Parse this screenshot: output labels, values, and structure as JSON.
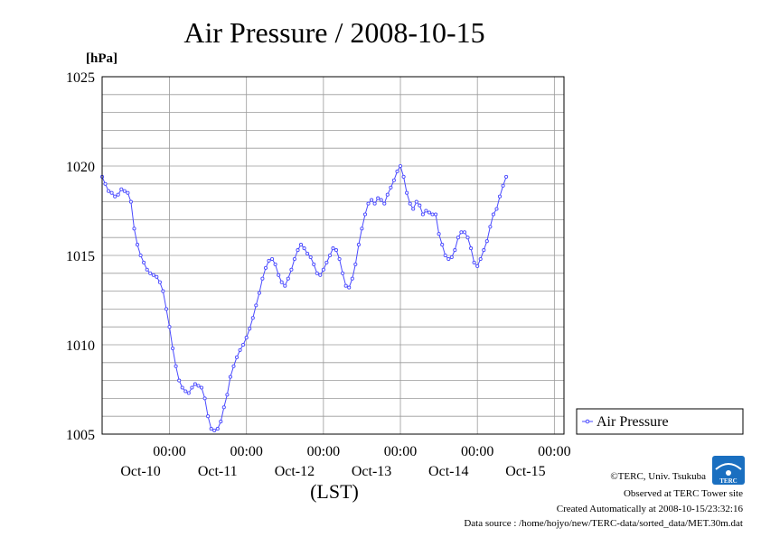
{
  "chart_data": {
    "type": "line",
    "title": "Air Pressure / 2008-10-15",
    "ylabel": "[hPa]",
    "xlabel": "(LST)",
    "ylim": [
      1005,
      1025
    ],
    "yticks": [
      1005,
      1010,
      1015,
      1020,
      1025
    ],
    "grid": true,
    "legend": "right",
    "xlim_hours": [
      0,
      144
    ],
    "xticks": [
      {
        "hour": 21,
        "time": "00:00",
        "date": "Oct-10"
      },
      {
        "hour": 45,
        "time": "00:00",
        "date": "Oct-11"
      },
      {
        "hour": 69,
        "time": "00:00",
        "date": "Oct-12"
      },
      {
        "hour": 93,
        "time": "00:00",
        "date": "Oct-13"
      },
      {
        "hour": 117,
        "time": "00:00",
        "date": "Oct-14"
      },
      {
        "hour": 141,
        "time": "00:00",
        "date": "Oct-15"
      }
    ],
    "series": [
      {
        "name": "Air Pressure",
        "color": "#4a4aff",
        "points": [
          [
            0,
            1019.4
          ],
          [
            1,
            1019.0
          ],
          [
            2,
            1018.6
          ],
          [
            3,
            1018.5
          ],
          [
            4,
            1018.3
          ],
          [
            5,
            1018.4
          ],
          [
            6,
            1018.7
          ],
          [
            7,
            1018.6
          ],
          [
            8,
            1018.5
          ],
          [
            9,
            1018.0
          ],
          [
            10,
            1016.5
          ],
          [
            11,
            1015.6
          ],
          [
            12,
            1015.0
          ],
          [
            13,
            1014.6
          ],
          [
            14,
            1014.2
          ],
          [
            15,
            1014.0
          ],
          [
            16,
            1013.9
          ],
          [
            17,
            1013.8
          ],
          [
            18,
            1013.5
          ],
          [
            19,
            1013.0
          ],
          [
            20,
            1012.0
          ],
          [
            21,
            1011.0
          ],
          [
            22,
            1009.8
          ],
          [
            23,
            1008.8
          ],
          [
            24,
            1008.0
          ],
          [
            25,
            1007.6
          ],
          [
            26,
            1007.4
          ],
          [
            27,
            1007.3
          ],
          [
            28,
            1007.6
          ],
          [
            29,
            1007.8
          ],
          [
            30,
            1007.7
          ],
          [
            31,
            1007.6
          ],
          [
            32,
            1007.0
          ],
          [
            33,
            1006.0
          ],
          [
            34,
            1005.3
          ],
          [
            35,
            1005.2
          ],
          [
            36,
            1005.3
          ],
          [
            37,
            1005.7
          ],
          [
            38,
            1006.5
          ],
          [
            39,
            1007.2
          ],
          [
            40,
            1008.2
          ],
          [
            41,
            1008.8
          ],
          [
            42,
            1009.3
          ],
          [
            43,
            1009.7
          ],
          [
            44,
            1010.0
          ],
          [
            45,
            1010.4
          ],
          [
            46,
            1010.9
          ],
          [
            47,
            1011.5
          ],
          [
            48,
            1012.2
          ],
          [
            49,
            1012.9
          ],
          [
            50,
            1013.7
          ],
          [
            51,
            1014.3
          ],
          [
            52,
            1014.7
          ],
          [
            53,
            1014.8
          ],
          [
            54,
            1014.5
          ],
          [
            55,
            1013.9
          ],
          [
            56,
            1013.5
          ],
          [
            57,
            1013.3
          ],
          [
            58,
            1013.7
          ],
          [
            59,
            1014.2
          ],
          [
            60,
            1014.8
          ],
          [
            61,
            1015.3
          ],
          [
            62,
            1015.6
          ],
          [
            63,
            1015.4
          ],
          [
            64,
            1015.1
          ],
          [
            65,
            1014.9
          ],
          [
            66,
            1014.5
          ],
          [
            67,
            1014.0
          ],
          [
            68,
            1013.9
          ],
          [
            69,
            1014.2
          ],
          [
            70,
            1014.6
          ],
          [
            71,
            1015.0
          ],
          [
            72,
            1015.4
          ],
          [
            73,
            1015.3
          ],
          [
            74,
            1014.8
          ],
          [
            75,
            1014.0
          ],
          [
            76,
            1013.3
          ],
          [
            77,
            1013.2
          ],
          [
            78,
            1013.7
          ],
          [
            79,
            1014.5
          ],
          [
            80,
            1015.6
          ],
          [
            81,
            1016.5
          ],
          [
            82,
            1017.3
          ],
          [
            83,
            1017.9
          ],
          [
            84,
            1018.1
          ],
          [
            85,
            1017.9
          ],
          [
            86,
            1018.2
          ],
          [
            87,
            1018.1
          ],
          [
            88,
            1017.9
          ],
          [
            89,
            1018.4
          ],
          [
            90,
            1018.8
          ],
          [
            91,
            1019.2
          ],
          [
            92,
            1019.7
          ],
          [
            93,
            1020.0
          ],
          [
            94,
            1019.4
          ],
          [
            95,
            1018.5
          ],
          [
            96,
            1017.9
          ],
          [
            97,
            1017.6
          ],
          [
            98,
            1018.0
          ],
          [
            99,
            1017.8
          ],
          [
            100,
            1017.3
          ],
          [
            101,
            1017.5
          ],
          [
            102,
            1017.4
          ],
          [
            103,
            1017.3
          ],
          [
            104,
            1017.3
          ],
          [
            105,
            1016.2
          ],
          [
            106,
            1015.6
          ],
          [
            107,
            1015.0
          ],
          [
            108,
            1014.8
          ],
          [
            109,
            1014.9
          ],
          [
            110,
            1015.3
          ],
          [
            111,
            1016.0
          ],
          [
            112,
            1016.3
          ],
          [
            113,
            1016.3
          ],
          [
            114,
            1016.0
          ],
          [
            115,
            1015.4
          ],
          [
            116,
            1014.6
          ],
          [
            117,
            1014.4
          ],
          [
            118,
            1014.8
          ],
          [
            119,
            1015.3
          ],
          [
            120,
            1015.8
          ],
          [
            121,
            1016.6
          ],
          [
            122,
            1017.3
          ],
          [
            123,
            1017.6
          ],
          [
            124,
            1018.3
          ],
          [
            125,
            1018.9
          ],
          [
            126,
            1019.4
          ]
        ]
      }
    ]
  },
  "footer": {
    "credit": "©TERC, Univ. Tsukuba",
    "observed": "Observed at TERC Tower site",
    "created": "Created Automatically at 2008-10-15/23:32:16",
    "source": "Data source : /home/hojyo/new/TERC-data/sorted_data/MET.30m.dat"
  },
  "logo": {
    "text": "TERC",
    "color": "#1a6fc0"
  }
}
